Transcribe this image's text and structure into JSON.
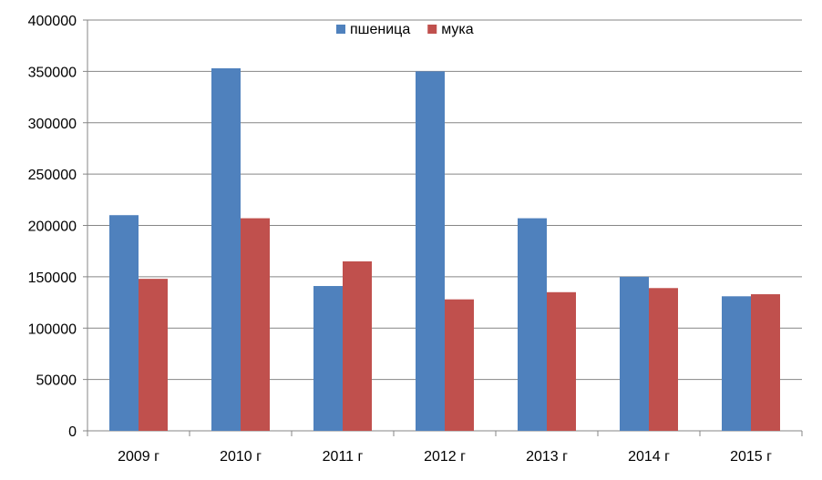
{
  "chart_data": {
    "type": "bar",
    "categories": [
      "2009 г",
      "2010 г",
      "2011 г",
      "2012 г",
      "2013 г",
      "2014 г",
      "2015 г"
    ],
    "series": [
      {
        "name": "пшеница",
        "color": "#4F81BD",
        "values": [
          210000,
          353000,
          141000,
          350000,
          207000,
          150000,
          131000
        ]
      },
      {
        "name": "мука",
        "color": "#C0504D",
        "values": [
          148000,
          207000,
          165000,
          128000,
          135000,
          139000,
          133000
        ]
      }
    ],
    "ylim": [
      0,
      400000
    ],
    "ytick_step": 50000,
    "grid": true,
    "legend_position": "top-center"
  }
}
